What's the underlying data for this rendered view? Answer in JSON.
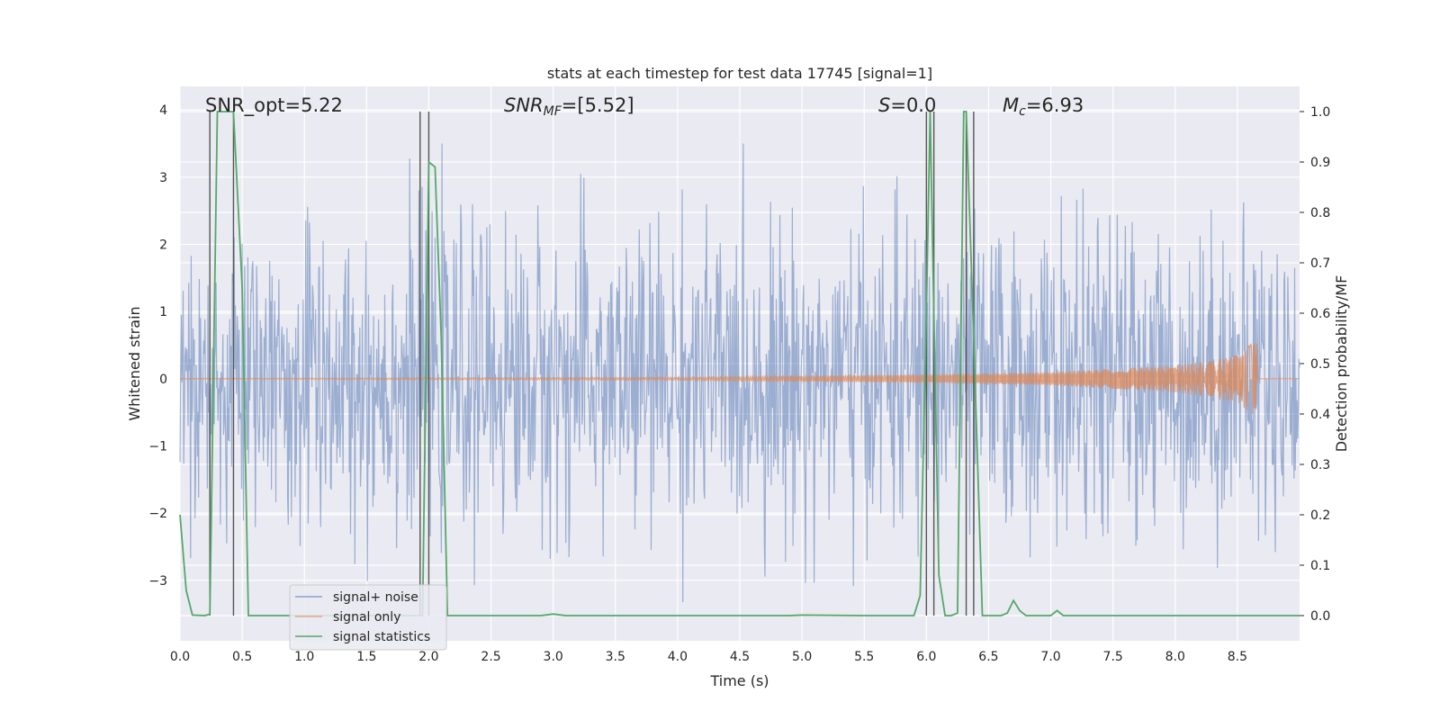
{
  "chart_data": {
    "type": "line",
    "title": "stats at each timestep for test data 17745 [signal=1]",
    "xlabel": "Time (s)",
    "ylabel_left": "Whitened strain",
    "ylabel_right": "Detection probability/MF",
    "xlim": [
      0.0,
      9.0
    ],
    "ylim_left": [
      -3.9,
      4.35
    ],
    "ylim_right": [
      -0.05,
      1.05
    ],
    "x_ticks": [
      "0.0",
      "0.5",
      "1.0",
      "1.5",
      "2.0",
      "2.5",
      "3.0",
      "3.5",
      "4.0",
      "4.5",
      "5.0",
      "5.5",
      "6.0",
      "6.5",
      "7.0",
      "7.5",
      "8.0",
      "8.5"
    ],
    "y_left_ticks": [
      "4",
      "3",
      "2",
      "1",
      "0",
      "−1",
      "−2",
      "−3"
    ],
    "y_right_ticks": [
      "1.0",
      "0.9",
      "0.8",
      "0.7",
      "0.6",
      "0.5",
      "0.4",
      "0.3",
      "0.2",
      "0.1",
      "0.0"
    ],
    "grid": true,
    "legend_position": "lower-left",
    "annotations": {
      "snr_opt": "SNR_opt=5.22",
      "snr_mf_base": "SNR",
      "snr_mf_sub": "MF",
      "snr_mf_value": "=[5.52]",
      "s_label": "S",
      "s_value": "=0.0",
      "mc_base": "M",
      "mc_sub": "c",
      "mc_value": "=6.93"
    },
    "event_lines_x": [
      0.24,
      0.43,
      1.93,
      2.0,
      6.0,
      6.06,
      6.32,
      6.38
    ],
    "series": [
      {
        "name": "signal+ noise",
        "color": "#4c72b0",
        "description": "whitened strain (noise dominated)",
        "amplitude_range": [
          -3.6,
          3.5
        ]
      },
      {
        "name": "signal only",
        "color": "#dd8452",
        "description": "chirp signal growing toward merger at t=8.67",
        "envelope_points": [
          [
            0.0,
            0.005
          ],
          [
            4.0,
            0.02
          ],
          [
            6.0,
            0.06
          ],
          [
            7.0,
            0.1
          ],
          [
            8.0,
            0.2
          ],
          [
            8.5,
            0.35
          ],
          [
            8.66,
            0.6
          ]
        ]
      },
      {
        "name": "signal statistics",
        "color": "#55a868",
        "x": [
          0.0,
          0.05,
          0.1,
          0.2,
          0.24,
          0.3,
          0.4,
          0.43,
          0.5,
          0.55,
          0.6,
          1.0,
          1.5,
          1.9,
          1.95,
          2.0,
          2.05,
          2.1,
          2.15,
          2.2,
          2.5,
          2.9,
          3.0,
          3.1,
          3.5,
          4.0,
          4.5,
          4.9,
          5.0,
          5.5,
          5.9,
          5.95,
          6.0,
          6.03,
          6.06,
          6.1,
          6.15,
          6.2,
          6.25,
          6.3,
          6.32,
          6.38,
          6.45,
          6.5,
          6.6,
          6.65,
          6.7,
          6.75,
          6.8,
          6.9,
          7.0,
          7.05,
          7.1,
          7.2,
          7.5,
          8.0,
          8.5,
          9.0
        ],
        "y": [
          0.2,
          0.05,
          0.001,
          0.0,
          0.003,
          1.0,
          1.0,
          1.0,
          0.65,
          0.0,
          0.0,
          0.0,
          0.0,
          0.0,
          0.0,
          0.9,
          0.89,
          0.55,
          0.0,
          0.0,
          0.0,
          0.0,
          0.003,
          0.0,
          0.0,
          0.0,
          0.0,
          0.0,
          0.001,
          0.0,
          0.0,
          0.04,
          0.6,
          1.0,
          0.6,
          0.08,
          0.0,
          0.0,
          0.005,
          1.0,
          1.0,
          0.55,
          0.0,
          0.0,
          0.0,
          0.005,
          0.03,
          0.01,
          0.0,
          0.0,
          0.0,
          0.01,
          0.0,
          0.0,
          0.0,
          0.0,
          0.0,
          0.0
        ]
      }
    ]
  }
}
